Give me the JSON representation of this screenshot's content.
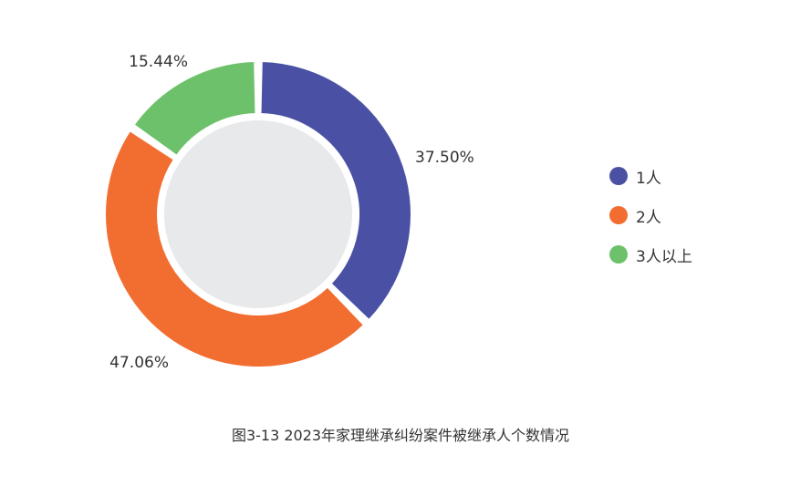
{
  "chart_data": {
    "type": "pie",
    "style": "donut",
    "categories": [
      "1人",
      "2人",
      "3人以上"
    ],
    "values": [
      37.5,
      47.06,
      15.44
    ],
    "value_labels": [
      "37.50%",
      "47.06%",
      "15.44%"
    ],
    "colors": [
      "#4a51a4",
      "#f26d30",
      "#6cc16a"
    ],
    "center_fill": "#e8e9eb",
    "legend_position": "right"
  },
  "caption": "图3-13  2023年家理继承纠纷案件被继承人个数情况"
}
